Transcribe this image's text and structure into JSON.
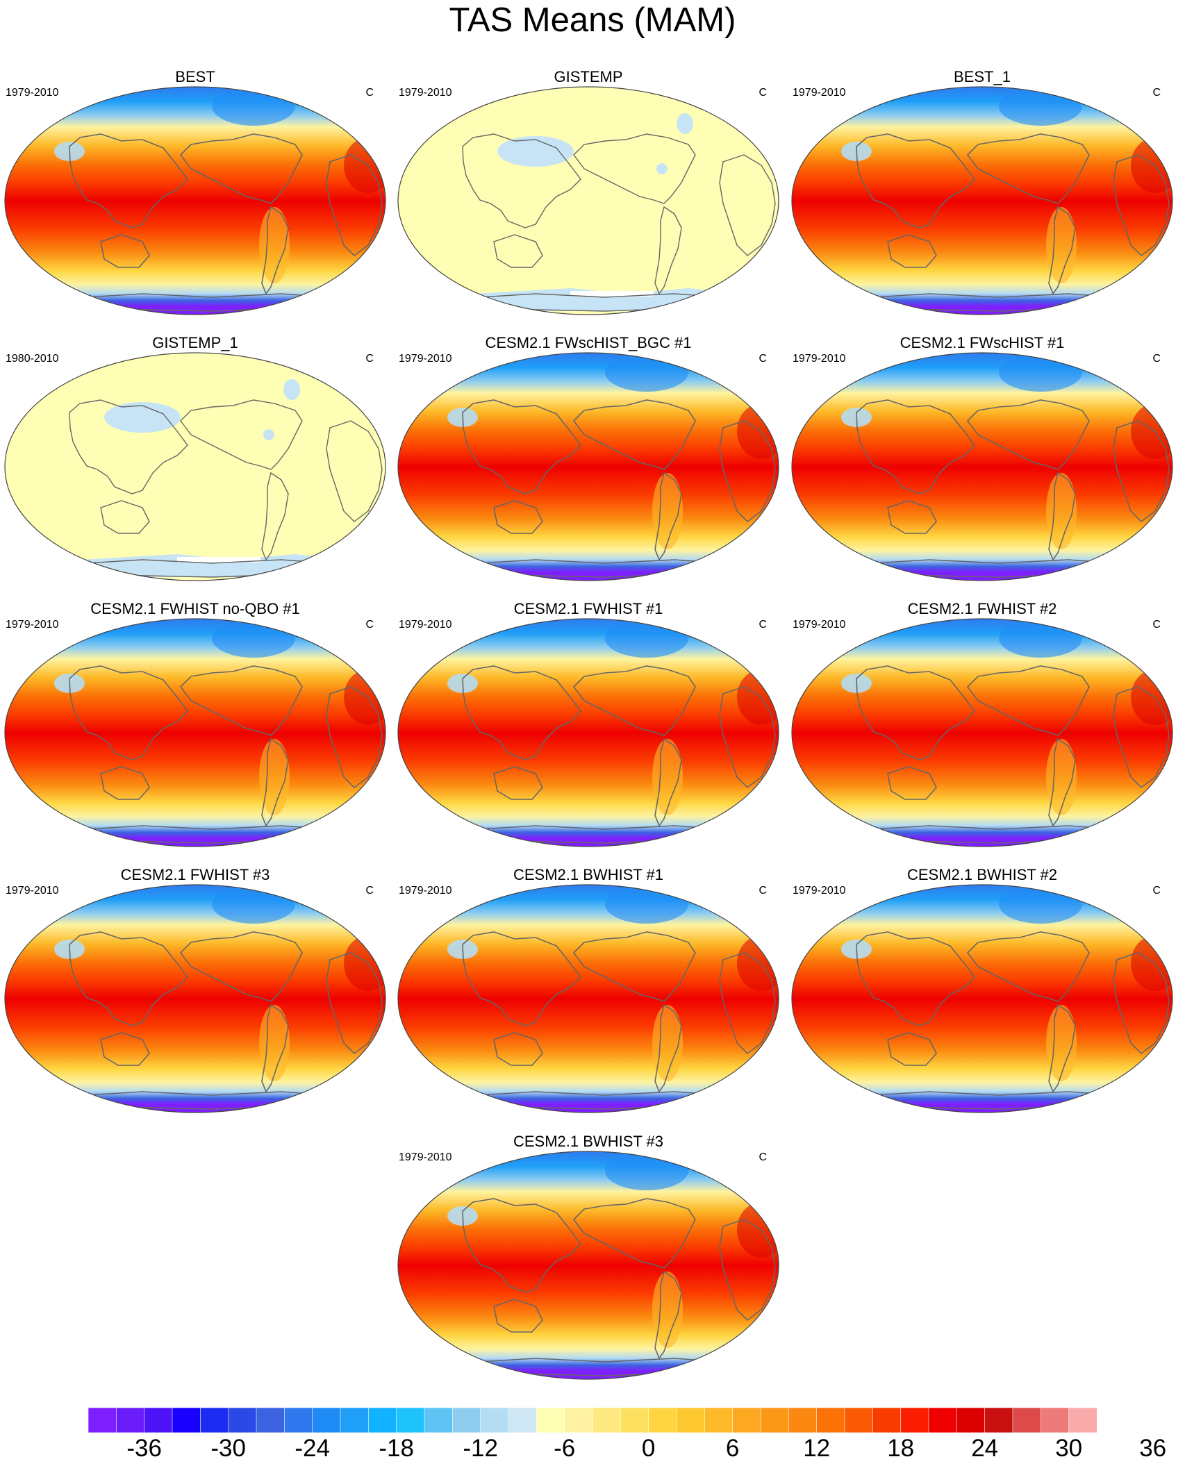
{
  "title": "TAS Means (MAM)",
  "panels": [
    {
      "title": "BEST",
      "period": "1979-2010",
      "unit": "C",
      "style": "model"
    },
    {
      "title": "GISTEMP",
      "period": "1979-2010",
      "unit": "C",
      "style": "anomaly"
    },
    {
      "title": "BEST_1",
      "period": "1979-2010",
      "unit": "C",
      "style": "model"
    },
    {
      "title": "GISTEMP_1",
      "period": "1980-2010",
      "unit": "C",
      "style": "anomaly"
    },
    {
      "title": "CESM2.1 FWscHIST_BGC #1",
      "period": "1979-2010",
      "unit": "C",
      "style": "model"
    },
    {
      "title": "CESM2.1 FWscHIST #1",
      "period": "1979-2010",
      "unit": "C",
      "style": "model"
    },
    {
      "title": "CESM2.1 FWHIST no-QBO #1",
      "period": "1979-2010",
      "unit": "C",
      "style": "model"
    },
    {
      "title": "CESM2.1 FWHIST #1",
      "period": "1979-2010",
      "unit": "C",
      "style": "model"
    },
    {
      "title": "CESM2.1 FWHIST #2",
      "period": "1979-2010",
      "unit": "C",
      "style": "model"
    },
    {
      "title": "CESM2.1 FWHIST #3",
      "period": "1979-2010",
      "unit": "C",
      "style": "model"
    },
    {
      "title": "CESM2.1 BWHIST #1",
      "period": "1979-2010",
      "unit": "C",
      "style": "model"
    },
    {
      "title": "CESM2.1 BWHIST #2",
      "period": "1979-2010",
      "unit": "C",
      "style": "model"
    },
    {
      "title": "CESM2.1 BWHIST #3",
      "period": "1979-2010",
      "unit": "C",
      "style": "model"
    }
  ],
  "colorbar": {
    "colors": [
      "#7f1fff",
      "#6a1dfa",
      "#4f13f7",
      "#1a00ff",
      "#1c2cf0",
      "#2a49e6",
      "#3b63e0",
      "#2f78ee",
      "#1f8cf5",
      "#1f9ff8",
      "#11b2ff",
      "#1ec3fb",
      "#5fc4f4",
      "#8fcdf0",
      "#b4dcf3",
      "#cfe6f4",
      "#fefeb4",
      "#fff2a0",
      "#feea80",
      "#fee060",
      "#fed540",
      "#fec830",
      "#fdb928",
      "#fca820",
      "#fc9818",
      "#fb8810",
      "#fb7208",
      "#fb5a04",
      "#fb3c00",
      "#fb1e00",
      "#ee0000",
      "#dc0000",
      "#c81010",
      "#dc4a4a",
      "#ee7a7a",
      "#f9aaaa"
    ],
    "labels": [
      "-36",
      "-30",
      "-24",
      "-18",
      "-12",
      "-6",
      "0",
      "6",
      "12",
      "18",
      "24",
      "30",
      "36"
    ],
    "label_box_index": [
      2,
      5,
      8,
      11,
      14,
      17,
      20,
      23,
      26,
      29,
      32,
      35,
      38
    ]
  }
}
